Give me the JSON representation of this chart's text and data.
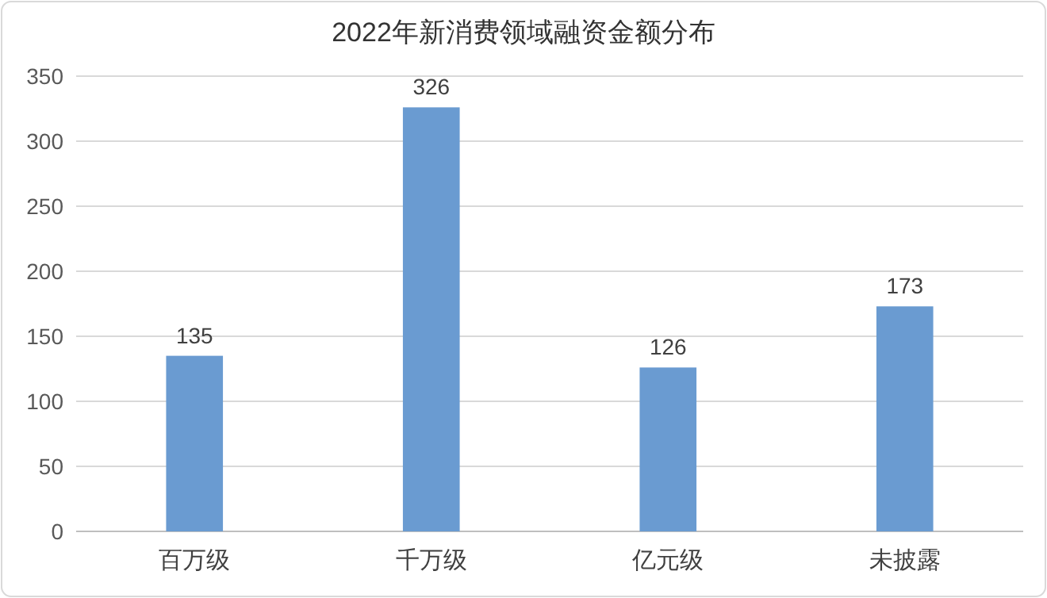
{
  "chart_data": {
    "type": "bar",
    "title": "2022年新消费领域融资金额分布",
    "categories": [
      "百万级",
      "千万级",
      "亿元级",
      "未披露"
    ],
    "values": [
      135,
      326,
      126,
      173
    ],
    "color": "#6a9bd1",
    "ylim": [
      0,
      350
    ],
    "yticks": [
      0,
      50,
      100,
      150,
      200,
      250,
      300,
      350
    ],
    "grid": "y",
    "data_labels": true
  }
}
